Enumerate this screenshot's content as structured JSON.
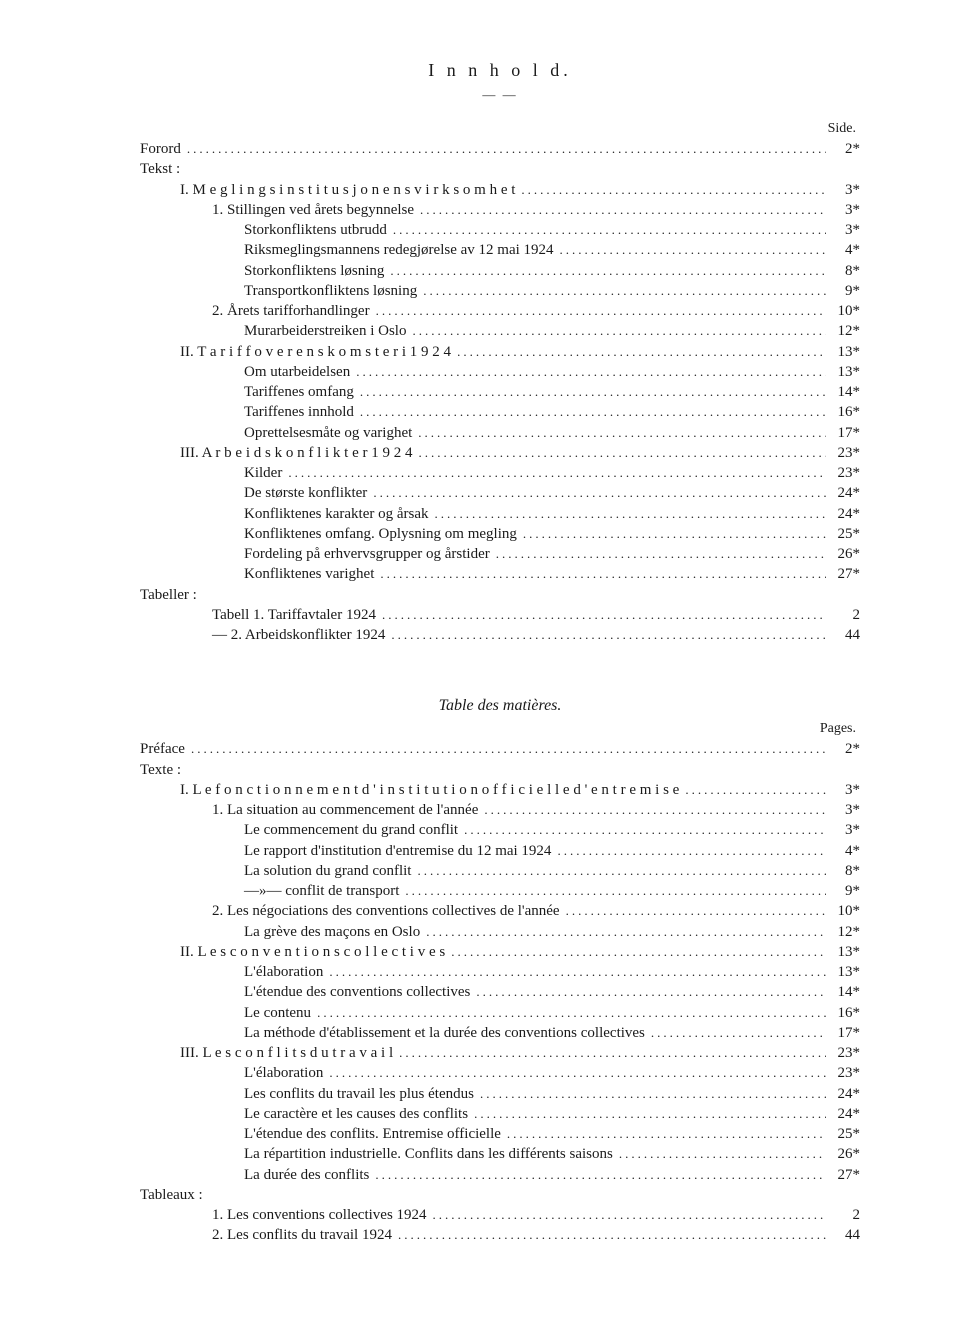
{
  "toc1": {
    "title": "I n n h o l d.",
    "rule": "— —",
    "page_header": "Side.",
    "lines": [
      {
        "indent": 0,
        "label": "Forord",
        "page": "2*"
      },
      {
        "indent": 0,
        "label": "Tekst :",
        "page": "",
        "nodots": true
      },
      {
        "indent": 1,
        "label": "I.  M e g l i n g s i n s t i t u s j o n e n s  v i r k s o m h e t",
        "page": "3*"
      },
      {
        "indent": 2,
        "label": "1.  Stillingen ved årets begynnelse",
        "page": "3*"
      },
      {
        "indent": 3,
        "label": "Storkonfliktens utbrudd",
        "page": "3*"
      },
      {
        "indent": 3,
        "label": "Riksmeglingsmannens redegjørelse av 12 mai 1924",
        "page": "4*"
      },
      {
        "indent": 3,
        "label": "Storkonfliktens løsning",
        "page": "8*"
      },
      {
        "indent": 3,
        "label": "Transportkonfliktens løsning",
        "page": "9*"
      },
      {
        "indent": 2,
        "label": "2.  Årets tarifforhandlinger",
        "page": "10*"
      },
      {
        "indent": 3,
        "label": "Murarbeiderstreiken i Oslo",
        "page": "12*"
      },
      {
        "indent": 1,
        "label": "II.  T a r i f f o v e r e n s k o m s t e r  i  1 9 2 4",
        "page": "13*"
      },
      {
        "indent": 3,
        "label": "Om utarbeidelsen",
        "page": "13*"
      },
      {
        "indent": 3,
        "label": "Tariffenes omfang",
        "page": "14*"
      },
      {
        "indent": 3,
        "label": "Tariffenes innhold",
        "page": "16*"
      },
      {
        "indent": 3,
        "label": "Oprettelsesmåte og varighet",
        "page": "17*"
      },
      {
        "indent": 1,
        "label": "III.  A r b e i d s k o n f l i k t e r  1 9 2 4",
        "page": "23*"
      },
      {
        "indent": 3,
        "label": "Kilder",
        "page": "23*"
      },
      {
        "indent": 3,
        "label": "De største konflikter",
        "page": "24*"
      },
      {
        "indent": 3,
        "label": "Konfliktenes karakter og årsak",
        "page": "24*"
      },
      {
        "indent": 3,
        "label": "Konfliktenes omfang.  Oplysning om megling",
        "page": "25*"
      },
      {
        "indent": 3,
        "label": "Fordeling på erhvervsgrupper og årstider",
        "page": "26*"
      },
      {
        "indent": 3,
        "label": "Konfliktenes varighet",
        "page": "27*"
      },
      {
        "indent": 0,
        "label": "Tabeller :",
        "page": "",
        "nodots": true
      },
      {
        "indent": 2,
        "label": "Tabell 1.   Tariffavtaler 1924",
        "page": "2"
      },
      {
        "indent": 2,
        "label": "   —    2.   Arbeidskonflikter 1924",
        "page": "44"
      }
    ]
  },
  "toc2": {
    "title": "Table des matières.",
    "page_header": "Pages.",
    "lines": [
      {
        "indent": 0,
        "label": "Préface",
        "page": "2*"
      },
      {
        "indent": 0,
        "label": "Texte :",
        "page": "",
        "nodots": true
      },
      {
        "indent": 1,
        "label": "I.  L e  f o n c t i o n n e m e n t  d ' i n s t i t u t i o n  o f f i c i e l l e  d ' e n t r e m i s e",
        "page": "3*"
      },
      {
        "indent": 2,
        "label": "1.  La situation au commencement de l'année",
        "page": "3*"
      },
      {
        "indent": 3,
        "label": "Le commencement du grand conflit",
        "page": "3*"
      },
      {
        "indent": 3,
        "label": "Le rapport d'institution d'entremise du 12 mai 1924",
        "page": "4*"
      },
      {
        "indent": 3,
        "label": "La solution du grand conflit",
        "page": "8*"
      },
      {
        "indent": 3,
        "label": "      —»—       conflit de transport",
        "page": "9*"
      },
      {
        "indent": 2,
        "label": "2.  Les négociations des conventions collectives de l'année",
        "page": "10*"
      },
      {
        "indent": 3,
        "label": "La grève des maçons en Oslo",
        "page": "12*"
      },
      {
        "indent": 1,
        "label": "II.  L e s  c o n v e n t i o n s  c o l l e c t i v e s",
        "page": "13*"
      },
      {
        "indent": 3,
        "label": "L'élaboration",
        "page": "13*"
      },
      {
        "indent": 3,
        "label": "L'étendue des conventions collectives",
        "page": "14*"
      },
      {
        "indent": 3,
        "label": "Le contenu",
        "page": "16*"
      },
      {
        "indent": 3,
        "label": "La méthode d'établissement et la durée des conventions collectives",
        "page": "17*"
      },
      {
        "indent": 1,
        "label": "III.  L e s  c o n f l i t s  d u  t r a v a i l",
        "page": "23*"
      },
      {
        "indent": 3,
        "label": "L'élaboration",
        "page": "23*"
      },
      {
        "indent": 3,
        "label": "Les conflits du travail les plus étendus",
        "page": "24*"
      },
      {
        "indent": 3,
        "label": "Le caractère et les causes des conflits",
        "page": "24*"
      },
      {
        "indent": 3,
        "label": "L'étendue des conflits.  Entremise officielle",
        "page": "25*"
      },
      {
        "indent": 3,
        "label": "La répartition industrielle.  Conflits dans les différents saisons",
        "page": "26*"
      },
      {
        "indent": 3,
        "label": "La durée des conflits",
        "page": "27*"
      },
      {
        "indent": 0,
        "label": "Tableaux :",
        "page": "",
        "nodots": true
      },
      {
        "indent": 2,
        "label": "1.   Les conventions collectives 1924",
        "page": "2"
      },
      {
        "indent": 2,
        "label": "2.   Les conflits du travail 1924",
        "page": "44"
      }
    ]
  }
}
